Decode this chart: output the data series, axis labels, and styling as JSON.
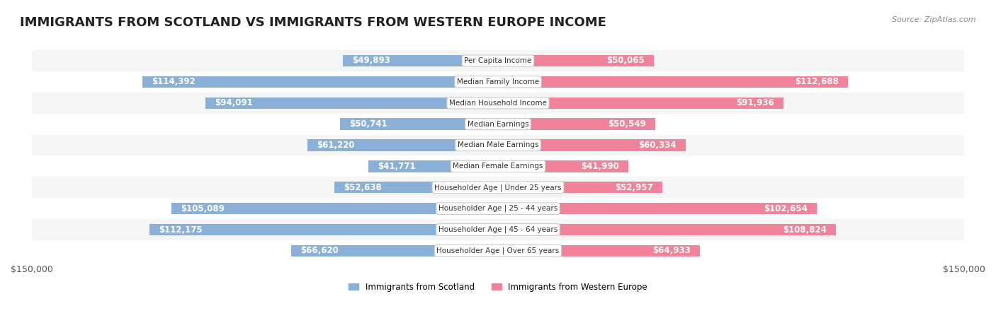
{
  "title": "IMMIGRANTS FROM SCOTLAND VS IMMIGRANTS FROM WESTERN EUROPE INCOME",
  "source": "Source: ZipAtlas.com",
  "categories": [
    "Per Capita Income",
    "Median Family Income",
    "Median Household Income",
    "Median Earnings",
    "Median Male Earnings",
    "Median Female Earnings",
    "Householder Age | Under 25 years",
    "Householder Age | 25 - 44 years",
    "Householder Age | 45 - 64 years",
    "Householder Age | Over 65 years"
  ],
  "scotland_values": [
    49893,
    114392,
    94091,
    50741,
    61220,
    41771,
    52638,
    105089,
    112175,
    66620
  ],
  "western_europe_values": [
    50065,
    112688,
    91936,
    50549,
    60334,
    41990,
    52957,
    102654,
    108824,
    64933
  ],
  "scotland_color": "#8ab0d8",
  "western_europe_color": "#f0829a",
  "scotland_label": "Immigrants from Scotland",
  "western_europe_label": "Immigrants from Western Europe",
  "max_value": 150000,
  "bar_height": 0.55,
  "background_color": "#ffffff",
  "row_bg_light": "#f5f5f5",
  "row_bg_white": "#ffffff",
  "label_fontsize": 8.5,
  "title_fontsize": 13,
  "axis_label_fontsize": 9
}
